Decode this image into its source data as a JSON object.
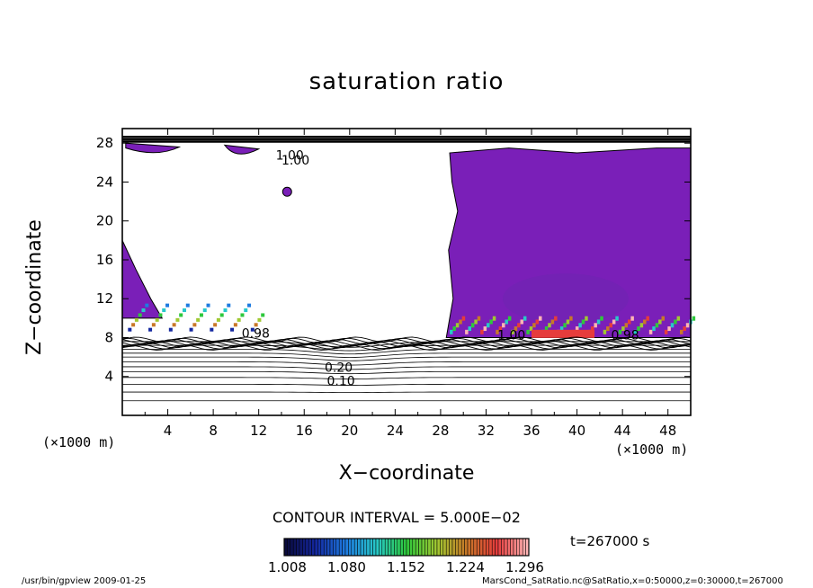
{
  "chart_data": {
    "type": "heatmap",
    "title": "saturation ratio",
    "xlabel": "X−coordinate",
    "ylabel": "Z−coordinate",
    "x_unit": "(×1000 m)",
    "z_unit": "(×1000 m)",
    "xlim": [
      0,
      50
    ],
    "ylim": [
      0,
      29.5
    ],
    "x_ticks": [
      "4",
      "8",
      "12",
      "16",
      "20",
      "24",
      "28",
      "32",
      "36",
      "40",
      "44",
      "48"
    ],
    "y_ticks": [
      "4",
      "8",
      "12",
      "16",
      "20",
      "24",
      "28"
    ],
    "contour_interval": "CONTOUR INTERVAL = 5.000E−02",
    "time_label": "t=267000 s",
    "colorbar": {
      "tick_labels": [
        "1.008",
        "1.080",
        "1.152",
        "1.224",
        "1.296"
      ],
      "min": 1.008,
      "max": 1.296,
      "colors": [
        "#0a0a3c",
        "#1428a0",
        "#1e7be0",
        "#28c8c8",
        "#2ec83c",
        "#a0c832",
        "#c87828",
        "#e63c3c",
        "#ffb4b4"
      ]
    },
    "contour_labels": [
      "1.00",
      "1.00",
      "0.98",
      "0.20",
      "0.10",
      "1.00",
      "0.98"
    ],
    "purple_region": {
      "color": "#7a1fb8",
      "x_start": 28.5,
      "x_end": 50,
      "z_start": 8,
      "z_end": 28.5
    },
    "subsaturated_contours_z": [
      1.5,
      2.4,
      3.2,
      3.9,
      4.5,
      5.0,
      5.5,
      6.0,
      6.4,
      6.8,
      7.2,
      7.6
    ]
  },
  "footer": {
    "left": "/usr/bin/gpview   2009-01-25",
    "right": "MarsCond_SatRatio.nc@SatRatio,x=0:50000,z=0:30000,t=267000"
  }
}
